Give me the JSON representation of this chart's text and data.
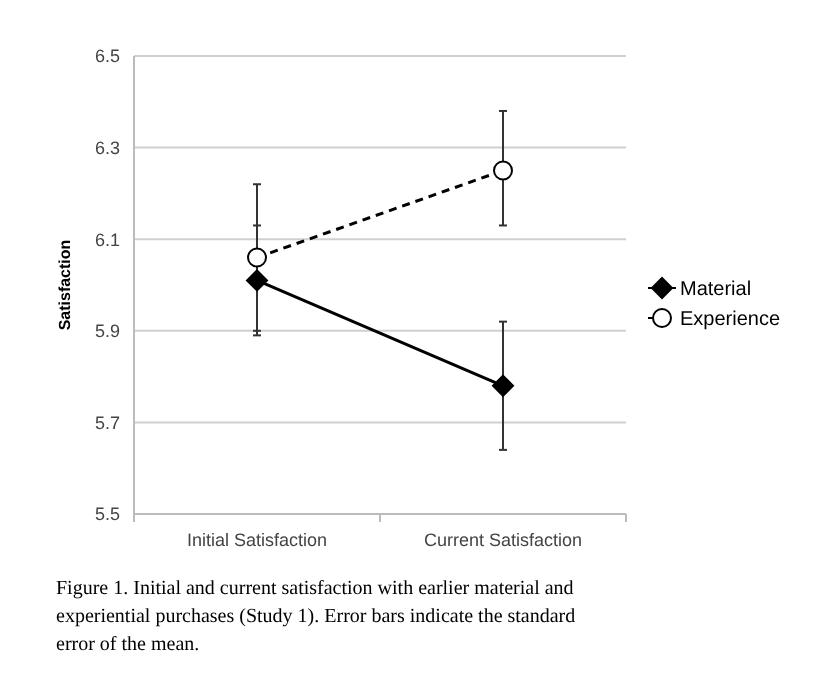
{
  "chart_data": {
    "type": "line",
    "ylabel": "Satisfaction",
    "categories": [
      "Initial Satisfaction",
      "Current Satisfaction"
    ],
    "series": [
      {
        "name": "Material",
        "color": "#000000",
        "marker": "diamond",
        "line_style": "solid",
        "values": [
          6.01,
          5.78
        ],
        "errors": [
          [
            5.89,
            6.13
          ],
          [
            5.64,
            5.92
          ]
        ]
      },
      {
        "name": "Experience",
        "color": "#000000",
        "marker": "circle",
        "line_style": "dashed",
        "values": [
          6.06,
          6.25
        ],
        "errors": [
          [
            5.9,
            6.22
          ],
          [
            6.13,
            6.38
          ]
        ]
      }
    ],
    "ylim": [
      5.5,
      6.5
    ],
    "yticks": [
      5.5,
      5.7,
      5.9,
      6.1,
      6.3,
      6.5
    ],
    "grid": "y",
    "legend": "right",
    "annotations": [
      "Figure 1.  Initial and current satisfaction with earlier material and experiential purchases (Study 1). Error bars indicate the standard error of the mean."
    ]
  }
}
